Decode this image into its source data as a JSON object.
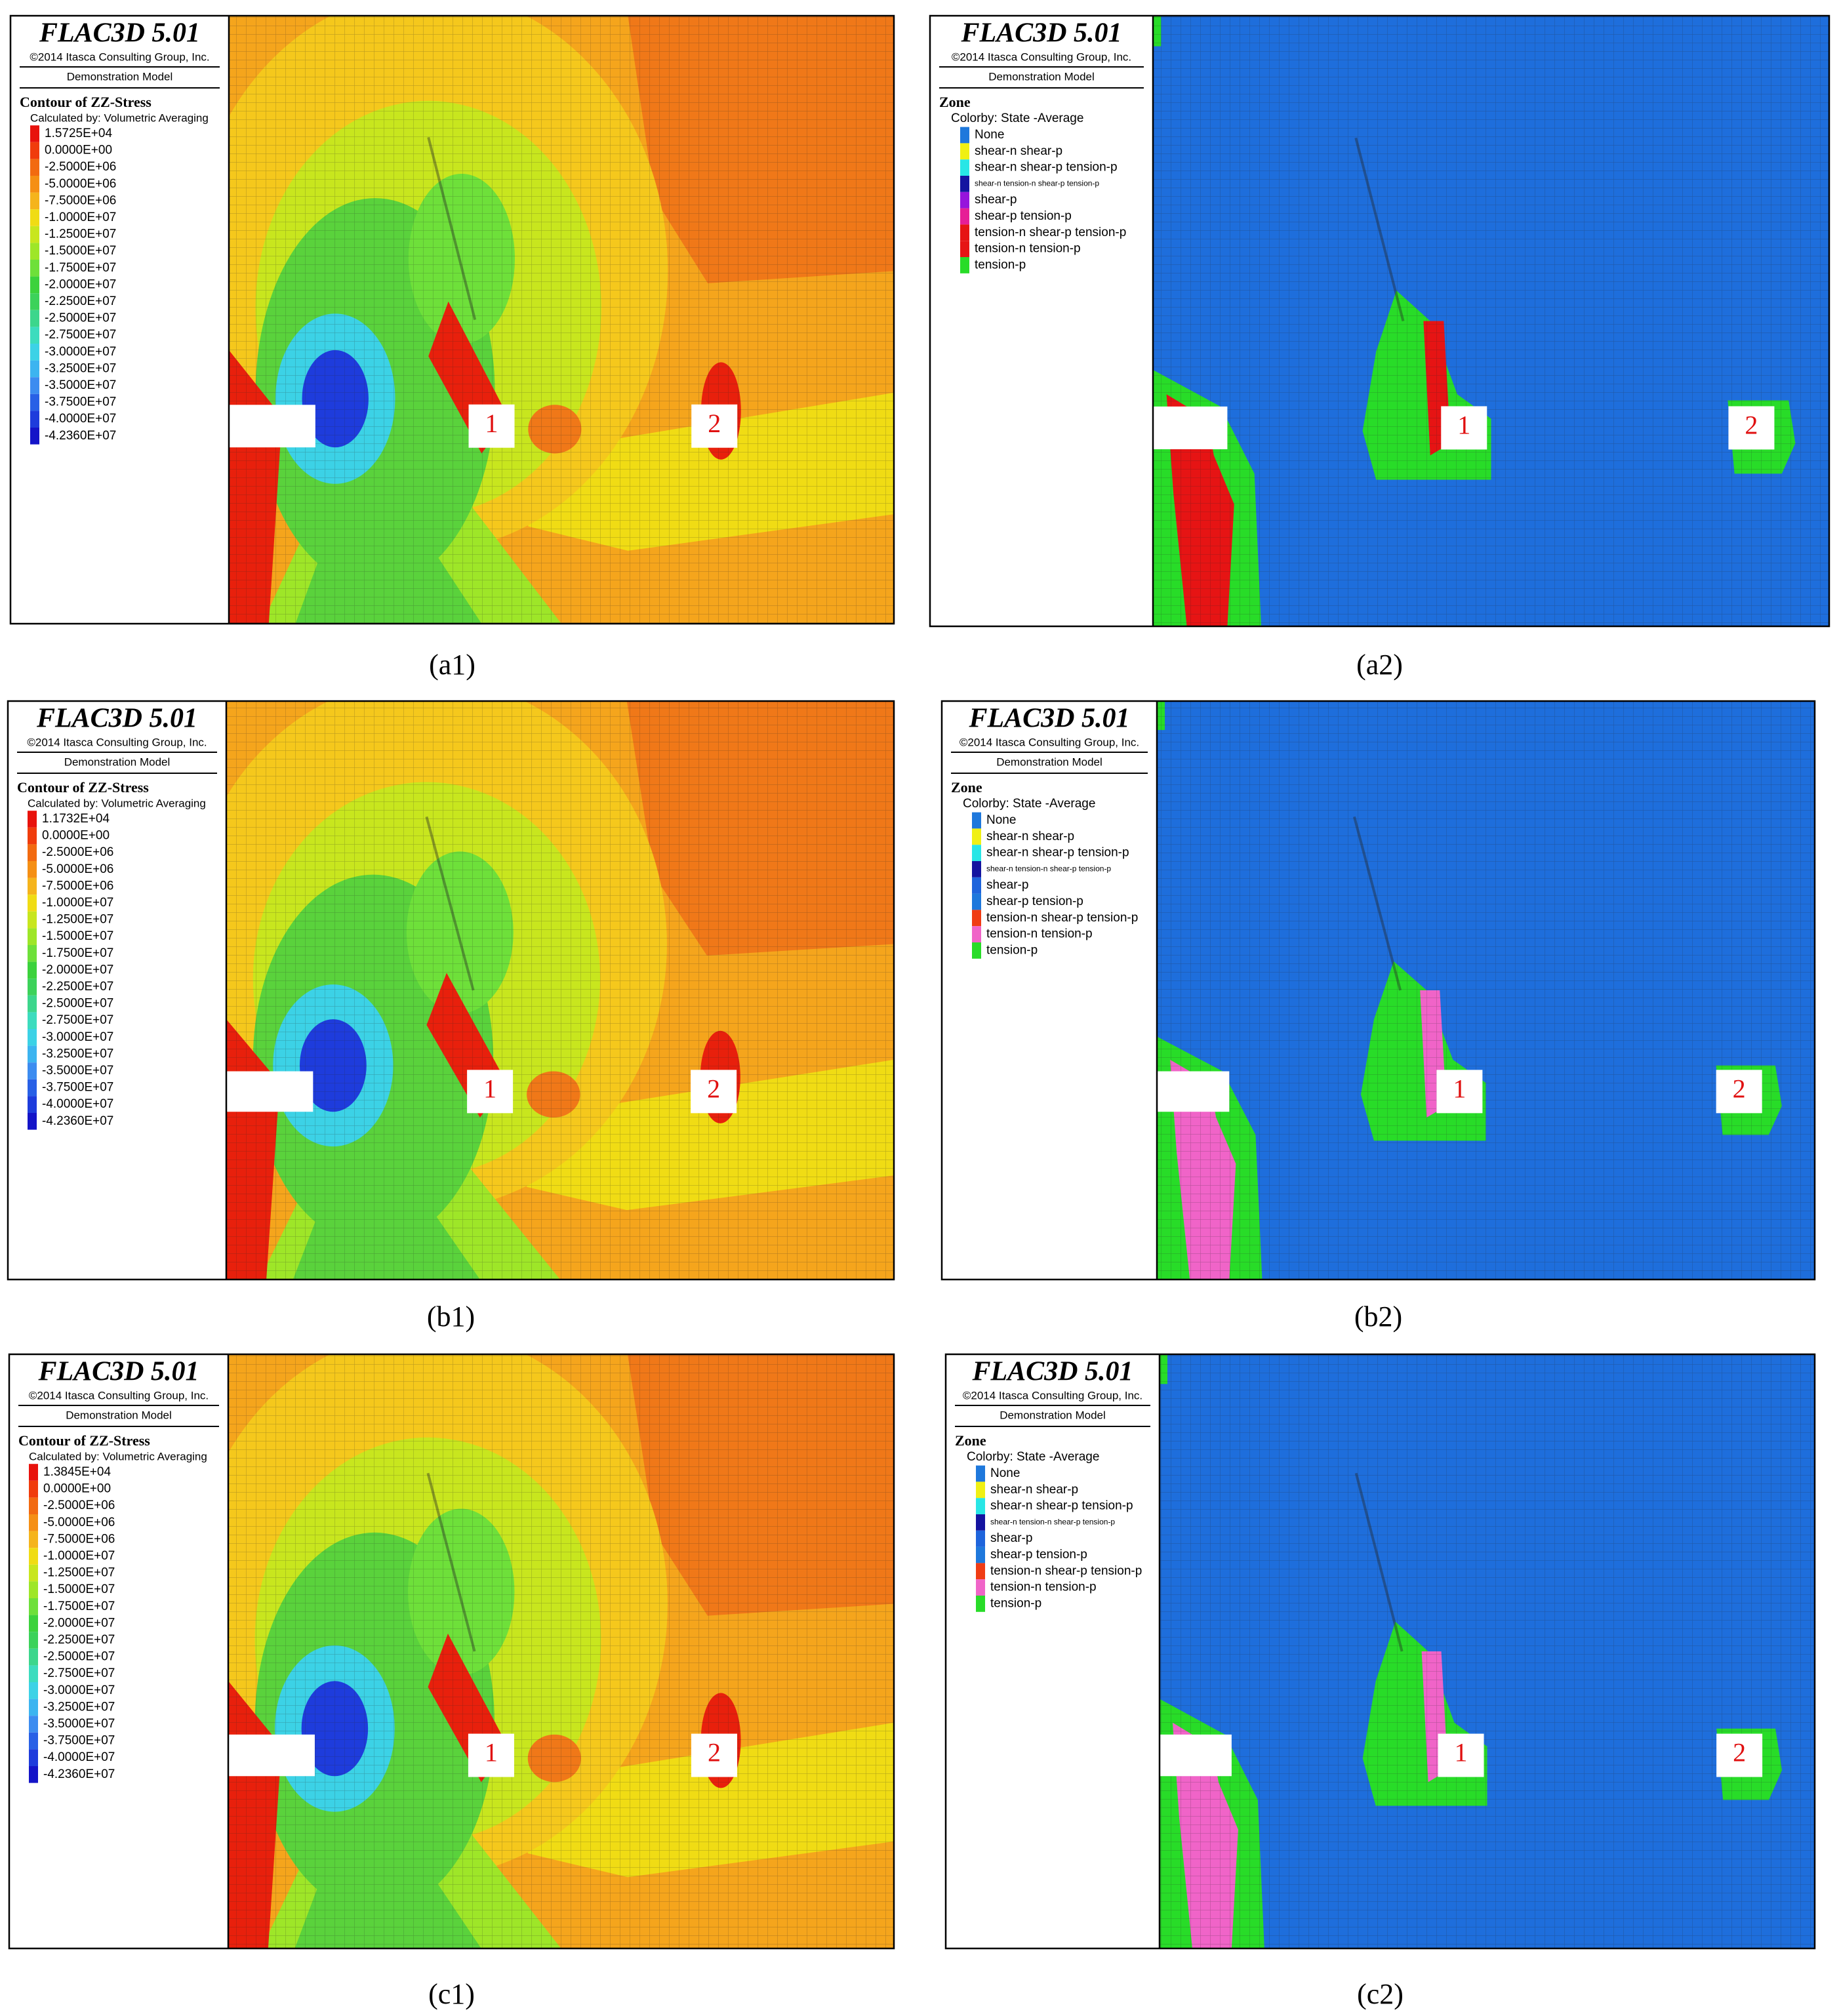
{
  "panels": [
    {
      "kind": "stress",
      "header": {
        "software": "FLAC3D 5.01",
        "copyright": "©2014 Itasca Consulting Group, Inc.",
        "model": "Demonstration Model"
      },
      "legend": {
        "title": "Contour of ZZ-Stress",
        "subtitle": "Calculated by: Volumetric Averaging",
        "items": [
          {
            "label": "1.5725E+04",
            "color": "#e8120c"
          },
          {
            "label": "0.0000E+00",
            "color": "#f03c0c"
          },
          {
            "label": "-2.5000E+06",
            "color": "#f26a10"
          },
          {
            "label": "-5.0000E+06",
            "color": "#f58f14"
          },
          {
            "label": "-7.5000E+06",
            "color": "#f5b41c"
          },
          {
            "label": "-1.0000E+07",
            "color": "#f0dc14"
          },
          {
            "label": "-1.2500E+07",
            "color": "#c8e61e"
          },
          {
            "label": "-1.5000E+07",
            "color": "#9ee628"
          },
          {
            "label": "-1.7500E+07",
            "color": "#6ee03a"
          },
          {
            "label": "-2.0000E+07",
            "color": "#3cd23c"
          },
          {
            "label": "-2.2500E+07",
            "color": "#3cd25a"
          },
          {
            "label": "-2.5000E+07",
            "color": "#3cd68c"
          },
          {
            "label": "-2.7500E+07",
            "color": "#3cdcbe"
          },
          {
            "label": "-3.0000E+07",
            "color": "#3cd2e6"
          },
          {
            "label": "-3.2500E+07",
            "color": "#3cb4f0"
          },
          {
            "label": "-3.5000E+07",
            "color": "#3c8cf0"
          },
          {
            "label": "-3.7500E+07",
            "color": "#2860e6"
          },
          {
            "label": "-4.0000E+07",
            "color": "#1e3cdc"
          },
          {
            "label": "-4.2360E+07",
            "color": "#1414c8"
          }
        ]
      },
      "markers": [
        "1",
        "2"
      ],
      "caption": "(a1)"
    },
    {
      "kind": "state",
      "header": {
        "software": "FLAC3D 5.01",
        "copyright": "©2014 Itasca Consulting Group, Inc.",
        "model": "Demonstration Model"
      },
      "legend": {
        "title": "Zone",
        "subtitle": "Colorby: State  -Average",
        "items": [
          {
            "label": "None",
            "color": "#1e78dc"
          },
          {
            "label": "shear-n shear-p",
            "color": "#f0f014"
          },
          {
            "label": "shear-n shear-p tension-p",
            "color": "#28e6e6"
          },
          {
            "label": "shear-n tension-n shear-p tension-p",
            "color": "#1414a0"
          },
          {
            "label": "shear-p",
            "color": "#9614dc"
          },
          {
            "label": "shear-p tension-p",
            "color": "#e61e96"
          },
          {
            "label": "tension-n shear-p tension-p",
            "color": "#e61414"
          },
          {
            "label": "tension-n tension-p",
            "color": "#e61414"
          },
          {
            "label": "tension-p",
            "color": "#28dc28"
          }
        ]
      },
      "markers": [
        "1",
        "2"
      ],
      "caption": "(a2)"
    },
    {
      "kind": "stress",
      "header": {
        "software": "FLAC3D 5.01",
        "copyright": "©2014 Itasca Consulting Group, Inc.",
        "model": "Demonstration Model"
      },
      "legend": {
        "title": "Contour of ZZ-Stress",
        "subtitle": "Calculated by: Volumetric Averaging",
        "items": [
          {
            "label": "1.1732E+04",
            "color": "#e8120c"
          },
          {
            "label": "0.0000E+00",
            "color": "#f03c0c"
          },
          {
            "label": "-2.5000E+06",
            "color": "#f26a10"
          },
          {
            "label": "-5.0000E+06",
            "color": "#f58f14"
          },
          {
            "label": "-7.5000E+06",
            "color": "#f5b41c"
          },
          {
            "label": "-1.0000E+07",
            "color": "#f0dc14"
          },
          {
            "label": "-1.2500E+07",
            "color": "#c8e61e"
          },
          {
            "label": "-1.5000E+07",
            "color": "#9ee628"
          },
          {
            "label": "-1.7500E+07",
            "color": "#6ee03a"
          },
          {
            "label": "-2.0000E+07",
            "color": "#3cd23c"
          },
          {
            "label": "-2.2500E+07",
            "color": "#3cd25a"
          },
          {
            "label": "-2.5000E+07",
            "color": "#3cd68c"
          },
          {
            "label": "-2.7500E+07",
            "color": "#3cdcbe"
          },
          {
            "label": "-3.0000E+07",
            "color": "#3cd2e6"
          },
          {
            "label": "-3.2500E+07",
            "color": "#3cb4f0"
          },
          {
            "label": "-3.5000E+07",
            "color": "#3c8cf0"
          },
          {
            "label": "-3.7500E+07",
            "color": "#2860e6"
          },
          {
            "label": "-4.0000E+07",
            "color": "#1e3cdc"
          },
          {
            "label": "-4.2360E+07",
            "color": "#1414c8"
          }
        ]
      },
      "markers": [
        "1",
        "2"
      ],
      "caption": "(b1)"
    },
    {
      "kind": "state",
      "header": {
        "software": "FLAC3D 5.01",
        "copyright": "©2014 Itasca Consulting Group, Inc.",
        "model": "Demonstration Model"
      },
      "legend": {
        "title": "Zone",
        "subtitle": "Colorby: State  -Average",
        "items": [
          {
            "label": "None",
            "color": "#1e78dc"
          },
          {
            "label": "shear-n shear-p",
            "color": "#f0f014"
          },
          {
            "label": "shear-n shear-p tension-p",
            "color": "#28e6e6"
          },
          {
            "label": "shear-n tension-n shear-p tension-p",
            "color": "#1414a0"
          },
          {
            "label": "shear-p",
            "color": "#1e64dc"
          },
          {
            "label": "shear-p tension-p",
            "color": "#1e78dc"
          },
          {
            "label": "tension-n shear-p tension-p",
            "color": "#f03c14"
          },
          {
            "label": "tension-n tension-p",
            "color": "#f064c8"
          },
          {
            "label": "tension-p",
            "color": "#28dc28"
          }
        ]
      },
      "markers": [
        "1",
        "2"
      ],
      "caption": "(b2)"
    },
    {
      "kind": "stress",
      "header": {
        "software": "FLAC3D 5.01",
        "copyright": "©2014 Itasca Consulting Group, Inc.",
        "model": "Demonstration Model"
      },
      "legend": {
        "title": "Contour of ZZ-Stress",
        "subtitle": "Calculated by: Volumetric Averaging",
        "items": [
          {
            "label": "1.3845E+04",
            "color": "#e8120c"
          },
          {
            "label": "0.0000E+00",
            "color": "#f03c0c"
          },
          {
            "label": "-2.5000E+06",
            "color": "#f26a10"
          },
          {
            "label": "-5.0000E+06",
            "color": "#f58f14"
          },
          {
            "label": "-7.5000E+06",
            "color": "#f5b41c"
          },
          {
            "label": "-1.0000E+07",
            "color": "#f0dc14"
          },
          {
            "label": "-1.2500E+07",
            "color": "#c8e61e"
          },
          {
            "label": "-1.5000E+07",
            "color": "#9ee628"
          },
          {
            "label": "-1.7500E+07",
            "color": "#6ee03a"
          },
          {
            "label": "-2.0000E+07",
            "color": "#3cd23c"
          },
          {
            "label": "-2.2500E+07",
            "color": "#3cd25a"
          },
          {
            "label": "-2.5000E+07",
            "color": "#3cd68c"
          },
          {
            "label": "-2.7500E+07",
            "color": "#3cdcbe"
          },
          {
            "label": "-3.0000E+07",
            "color": "#3cd2e6"
          },
          {
            "label": "-3.2500E+07",
            "color": "#3cb4f0"
          },
          {
            "label": "-3.5000E+07",
            "color": "#3c8cf0"
          },
          {
            "label": "-3.7500E+07",
            "color": "#2860e6"
          },
          {
            "label": "-4.0000E+07",
            "color": "#1e3cdc"
          },
          {
            "label": "-4.2360E+07",
            "color": "#1414c8"
          }
        ]
      },
      "markers": [
        "1",
        "2"
      ],
      "caption": "(c1)"
    },
    {
      "kind": "state",
      "header": {
        "software": "FLAC3D 5.01",
        "copyright": "©2014 Itasca Consulting Group, Inc.",
        "model": "Demonstration Model"
      },
      "legend": {
        "title": "Zone",
        "subtitle": "Colorby: State  -Average",
        "items": [
          {
            "label": "None",
            "color": "#1e78dc"
          },
          {
            "label": "shear-n shear-p",
            "color": "#f0f014"
          },
          {
            "label": "shear-n shear-p tension-p",
            "color": "#28e6e6"
          },
          {
            "label": "shear-n tension-n shear-p tension-p",
            "color": "#1414a0"
          },
          {
            "label": "shear-p",
            "color": "#1e64dc"
          },
          {
            "label": "shear-p tension-p",
            "color": "#1e78dc"
          },
          {
            "label": "tension-n shear-p tension-p",
            "color": "#f03c14"
          },
          {
            "label": "tension-n tension-p",
            "color": "#f064c8"
          },
          {
            "label": "tension-p",
            "color": "#28dc28"
          }
        ]
      },
      "markers": [
        "1",
        "2"
      ],
      "caption": "(c2)"
    }
  ]
}
